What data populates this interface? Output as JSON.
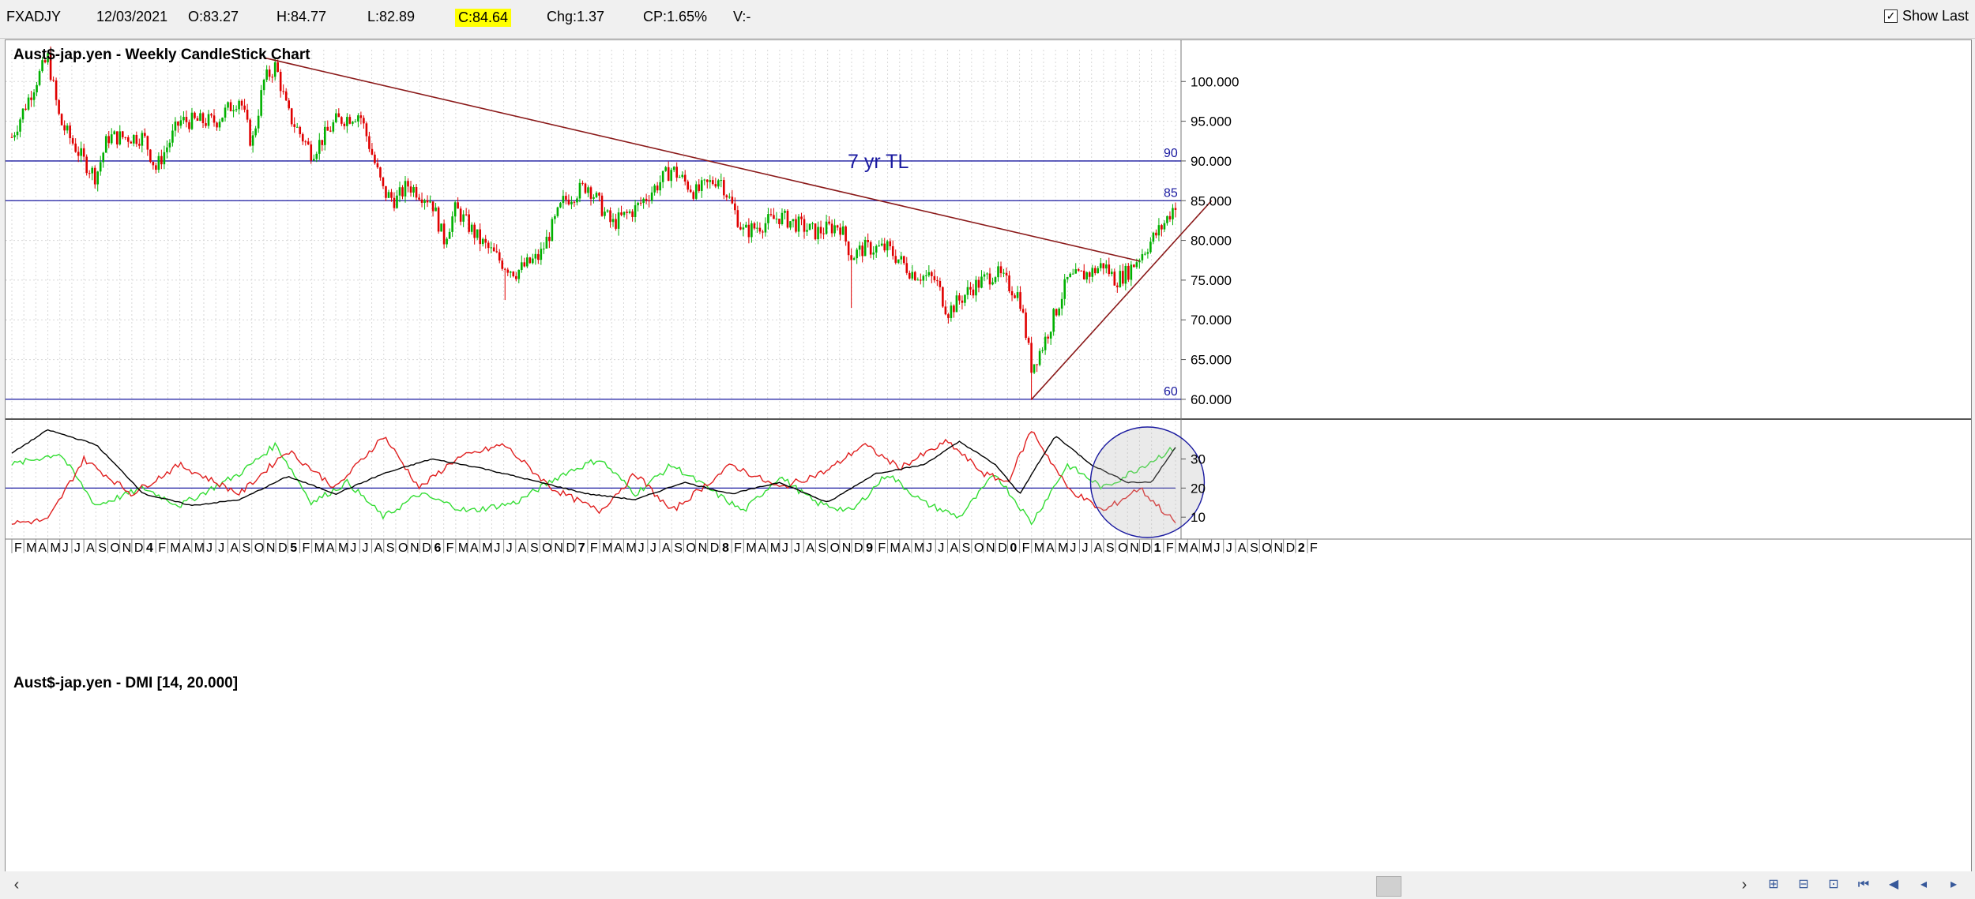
{
  "header": {
    "symbol": "FXADJY",
    "date": "12/03/2021",
    "open": "O:83.27",
    "high": "H:84.77",
    "low": "L:82.89",
    "close": "C:84.64",
    "change": "Chg:1.37",
    "change_pct": "CP:1.65%",
    "volume": "V:-",
    "show_last_label": "Show Last",
    "show_last_checked": true
  },
  "colors": {
    "up": "#00b000",
    "down": "#e00000",
    "trendline": "#8b1a1a",
    "hline": "#1a1aa0",
    "plus_di": "#33dd33",
    "minus_di": "#e02020",
    "adx": "#000000",
    "highlight": "#1a1aa0"
  },
  "chart_data": [
    {
      "type": "candlestick",
      "title": "Aust$-jap.yen - Weekly CandleStick Chart",
      "ylim": [
        58.5,
        104
      ],
      "y_ticks": [
        "100.000",
        "95.000",
        "90.000",
        "85.000",
        "80.000",
        "75.000",
        "70.000",
        "65.000",
        "60.000"
      ],
      "x_range": [
        "2013-02",
        "2021-03"
      ],
      "close_path": [
        {
          "x": "2013-02",
          "y": 93
        },
        {
          "x": "2013-04",
          "y": 100
        },
        {
          "x": "2013-05",
          "y": 103
        },
        {
          "x": "2013-06",
          "y": 95
        },
        {
          "x": "2013-08",
          "y": 90
        },
        {
          "x": "2013-09",
          "y": 88
        },
        {
          "x": "2013-10",
          "y": 93
        },
        {
          "x": "2014-01",
          "y": 93
        },
        {
          "x": "2014-02",
          "y": 89
        },
        {
          "x": "2014-04",
          "y": 95
        },
        {
          "x": "2014-07",
          "y": 95
        },
        {
          "x": "2014-09",
          "y": 98
        },
        {
          "x": "2014-10",
          "y": 92
        },
        {
          "x": "2014-11",
          "y": 100
        },
        {
          "x": "2014-12",
          "y": 102
        },
        {
          "x": "2015-01",
          "y": 96
        },
        {
          "x": "2015-03",
          "y": 91
        },
        {
          "x": "2015-05",
          "y": 95
        },
        {
          "x": "2015-07",
          "y": 96
        },
        {
          "x": "2015-08",
          "y": 91
        },
        {
          "x": "2015-09",
          "y": 86
        },
        {
          "x": "2015-10",
          "y": 85
        },
        {
          "x": "2015-11",
          "y": 87
        },
        {
          "x": "2016-01",
          "y": 85
        },
        {
          "x": "2016-02",
          "y": 80
        },
        {
          "x": "2016-03",
          "y": 84
        },
        {
          "x": "2016-05",
          "y": 80
        },
        {
          "x": "2016-07",
          "y": 77
        },
        {
          "x": "2016-08",
          "y": 76
        },
        {
          "x": "2016-10",
          "y": 78
        },
        {
          "x": "2016-12",
          "y": 85
        },
        {
          "x": "2017-02",
          "y": 87
        },
        {
          "x": "2017-04",
          "y": 82
        },
        {
          "x": "2017-06",
          "y": 84
        },
        {
          "x": "2017-09",
          "y": 89
        },
        {
          "x": "2017-11",
          "y": 86
        },
        {
          "x": "2018-01",
          "y": 88
        },
        {
          "x": "2018-03",
          "y": 81
        },
        {
          "x": "2018-06",
          "y": 83
        },
        {
          "x": "2018-09",
          "y": 81
        },
        {
          "x": "2018-11",
          "y": 82
        },
        {
          "x": "2018-12",
          "y": 78
        },
        {
          "x": "2019-01",
          "y": 79
        },
        {
          "x": "2019-03",
          "y": 79
        },
        {
          "x": "2019-05",
          "y": 76
        },
        {
          "x": "2019-07",
          "y": 75
        },
        {
          "x": "2019-08",
          "y": 71
        },
        {
          "x": "2019-10",
          "y": 74
        },
        {
          "x": "2019-12",
          "y": 76
        },
        {
          "x": "2020-02",
          "y": 73
        },
        {
          "x": "2020-03",
          "y": 64
        },
        {
          "x": "2020-04",
          "y": 67
        },
        {
          "x": "2020-06",
          "y": 75
        },
        {
          "x": "2020-08",
          "y": 76
        },
        {
          "x": "2020-09",
          "y": 77
        },
        {
          "x": "2020-10",
          "y": 75
        },
        {
          "x": "2020-11",
          "y": 76
        },
        {
          "x": "2020-12",
          "y": 78
        },
        {
          "x": "2021-01",
          "y": 80
        },
        {
          "x": "2021-02",
          "y": 82
        },
        {
          "x": "2021-03",
          "y": 84.64
        }
      ],
      "lows": [
        {
          "x": "2016-07",
          "y": 72.5
        },
        {
          "x": "2018-12",
          "y": 71.5
        },
        {
          "x": "2020-03",
          "y": 59.9
        }
      ],
      "horizontal_lines": [
        {
          "value": 90,
          "label": "90"
        },
        {
          "value": 85,
          "label": "85"
        },
        {
          "value": 60,
          "label": "60"
        }
      ],
      "trendlines": [
        {
          "name": "downtrend",
          "from": {
            "x": "2014-11",
            "y": 103
          },
          "to": {
            "x": "2020-12",
            "y": 77.4
          }
        },
        {
          "name": "uptrend",
          "from": {
            "x": "2020-03",
            "y": 60
          },
          "to": {
            "x": "2021-06",
            "y": 85
          }
        }
      ],
      "annotation": "7 yr TL"
    },
    {
      "type": "line",
      "title": "Aust$-jap.yen - DMI [14, 20.000]",
      "ylim": [
        3,
        41
      ],
      "y_ticks": [
        "30",
        "20",
        "10"
      ],
      "reference_line": 20,
      "series": [
        {
          "key": "plus_di",
          "points": [
            {
              "x": "2013-02",
              "y": 28
            },
            {
              "x": "2013-06",
              "y": 32
            },
            {
              "x": "2013-09",
              "y": 14
            },
            {
              "x": "2014-01",
              "y": 20
            },
            {
              "x": "2014-04",
              "y": 14
            },
            {
              "x": "2014-09",
              "y": 25
            },
            {
              "x": "2014-12",
              "y": 35
            },
            {
              "x": "2015-03",
              "y": 15
            },
            {
              "x": "2015-06",
              "y": 22
            },
            {
              "x": "2015-09",
              "y": 10
            },
            {
              "x": "2015-12",
              "y": 18
            },
            {
              "x": "2016-04",
              "y": 12
            },
            {
              "x": "2016-08",
              "y": 15
            },
            {
              "x": "2016-12",
              "y": 25
            },
            {
              "x": "2017-03",
              "y": 30
            },
            {
              "x": "2017-06",
              "y": 18
            },
            {
              "x": "2017-09",
              "y": 28
            },
            {
              "x": "2017-12",
              "y": 20
            },
            {
              "x": "2018-03",
              "y": 12
            },
            {
              "x": "2018-06",
              "y": 24
            },
            {
              "x": "2018-09",
              "y": 15
            },
            {
              "x": "2018-12",
              "y": 12
            },
            {
              "x": "2019-03",
              "y": 25
            },
            {
              "x": "2019-06",
              "y": 15
            },
            {
              "x": "2019-09",
              "y": 10
            },
            {
              "x": "2019-12",
              "y": 25
            },
            {
              "x": "2020-03",
              "y": 8
            },
            {
              "x": "2020-06",
              "y": 28
            },
            {
              "x": "2020-09",
              "y": 20
            },
            {
              "x": "2020-12",
              "y": 27
            },
            {
              "x": "2021-03",
              "y": 34
            }
          ]
        },
        {
          "key": "minus_di",
          "points": [
            {
              "x": "2013-02",
              "y": 8
            },
            {
              "x": "2013-05",
              "y": 9
            },
            {
              "x": "2013-08",
              "y": 30
            },
            {
              "x": "2013-12",
              "y": 18
            },
            {
              "x": "2014-04",
              "y": 28
            },
            {
              "x": "2014-09",
              "y": 18
            },
            {
              "x": "2015-01",
              "y": 33
            },
            {
              "x": "2015-05",
              "y": 20
            },
            {
              "x": "2015-09",
              "y": 38
            },
            {
              "x": "2015-12",
              "y": 20
            },
            {
              "x": "2016-03",
              "y": 30
            },
            {
              "x": "2016-07",
              "y": 35
            },
            {
              "x": "2016-11",
              "y": 20
            },
            {
              "x": "2017-03",
              "y": 12
            },
            {
              "x": "2017-06",
              "y": 25
            },
            {
              "x": "2017-09",
              "y": 12
            },
            {
              "x": "2018-02",
              "y": 28
            },
            {
              "x": "2018-06",
              "y": 20
            },
            {
              "x": "2018-10",
              "y": 26
            },
            {
              "x": "2019-01",
              "y": 35
            },
            {
              "x": "2019-04",
              "y": 27
            },
            {
              "x": "2019-08",
              "y": 36
            },
            {
              "x": "2019-11",
              "y": 25
            },
            {
              "x": "2020-01",
              "y": 22
            },
            {
              "x": "2020-03",
              "y": 40
            },
            {
              "x": "2020-06",
              "y": 20
            },
            {
              "x": "2020-09",
              "y": 12
            },
            {
              "x": "2020-12",
              "y": 20
            },
            {
              "x": "2021-03",
              "y": 8
            }
          ]
        },
        {
          "key": "adx",
          "points": [
            {
              "x": "2013-02",
              "y": 32
            },
            {
              "x": "2013-05",
              "y": 40
            },
            {
              "x": "2013-09",
              "y": 35
            },
            {
              "x": "2014-01",
              "y": 18
            },
            {
              "x": "2014-05",
              "y": 14
            },
            {
              "x": "2014-09",
              "y": 16
            },
            {
              "x": "2015-01",
              "y": 24
            },
            {
              "x": "2015-05",
              "y": 18
            },
            {
              "x": "2015-09",
              "y": 25
            },
            {
              "x": "2016-01",
              "y": 30
            },
            {
              "x": "2016-05",
              "y": 27
            },
            {
              "x": "2016-10",
              "y": 22
            },
            {
              "x": "2017-02",
              "y": 18
            },
            {
              "x": "2017-06",
              "y": 16
            },
            {
              "x": "2017-10",
              "y": 22
            },
            {
              "x": "2018-02",
              "y": 18
            },
            {
              "x": "2018-06",
              "y": 22
            },
            {
              "x": "2018-10",
              "y": 15
            },
            {
              "x": "2019-02",
              "y": 25
            },
            {
              "x": "2019-06",
              "y": 28
            },
            {
              "x": "2019-09",
              "y": 36
            },
            {
              "x": "2019-12",
              "y": 28
            },
            {
              "x": "2020-02",
              "y": 18
            },
            {
              "x": "2020-05",
              "y": 38
            },
            {
              "x": "2020-08",
              "y": 28
            },
            {
              "x": "2020-11",
              "y": 22
            },
            {
              "x": "2021-01",
              "y": 22
            },
            {
              "x": "2021-03",
              "y": 34
            }
          ]
        }
      ],
      "highlight_ellipse": {
        "x_center": "2020-12",
        "y_center": 22
      }
    }
  ],
  "x_axis_labels": [
    "F",
    "M",
    "A",
    "M",
    "J",
    "J",
    "A",
    "S",
    "O",
    "N",
    "D",
    "4",
    "F",
    "M",
    "A",
    "M",
    "J",
    "J",
    "A",
    "S",
    "O",
    "N",
    "D",
    "5",
    "F",
    "M",
    "A",
    "M",
    "J",
    "J",
    "A",
    "S",
    "O",
    "N",
    "D",
    "6",
    "F",
    "M",
    "A",
    "M",
    "J",
    "J",
    "A",
    "S",
    "O",
    "N",
    "D",
    "7",
    "F",
    "M",
    "A",
    "M",
    "J",
    "J",
    "A",
    "S",
    "O",
    "N",
    "D",
    "8",
    "F",
    "M",
    "A",
    "M",
    "J",
    "J",
    "A",
    "S",
    "O",
    "N",
    "D",
    "9",
    "F",
    "M",
    "A",
    "M",
    "J",
    "J",
    "A",
    "S",
    "O",
    "N",
    "D",
    "0",
    "F",
    "M",
    "A",
    "M",
    "J",
    "J",
    "A",
    "S",
    "O",
    "N",
    "D",
    "1",
    "F",
    "M",
    "A",
    "M",
    "J",
    "J",
    "A",
    "S",
    "O",
    "N",
    "D",
    "2",
    "F"
  ]
}
